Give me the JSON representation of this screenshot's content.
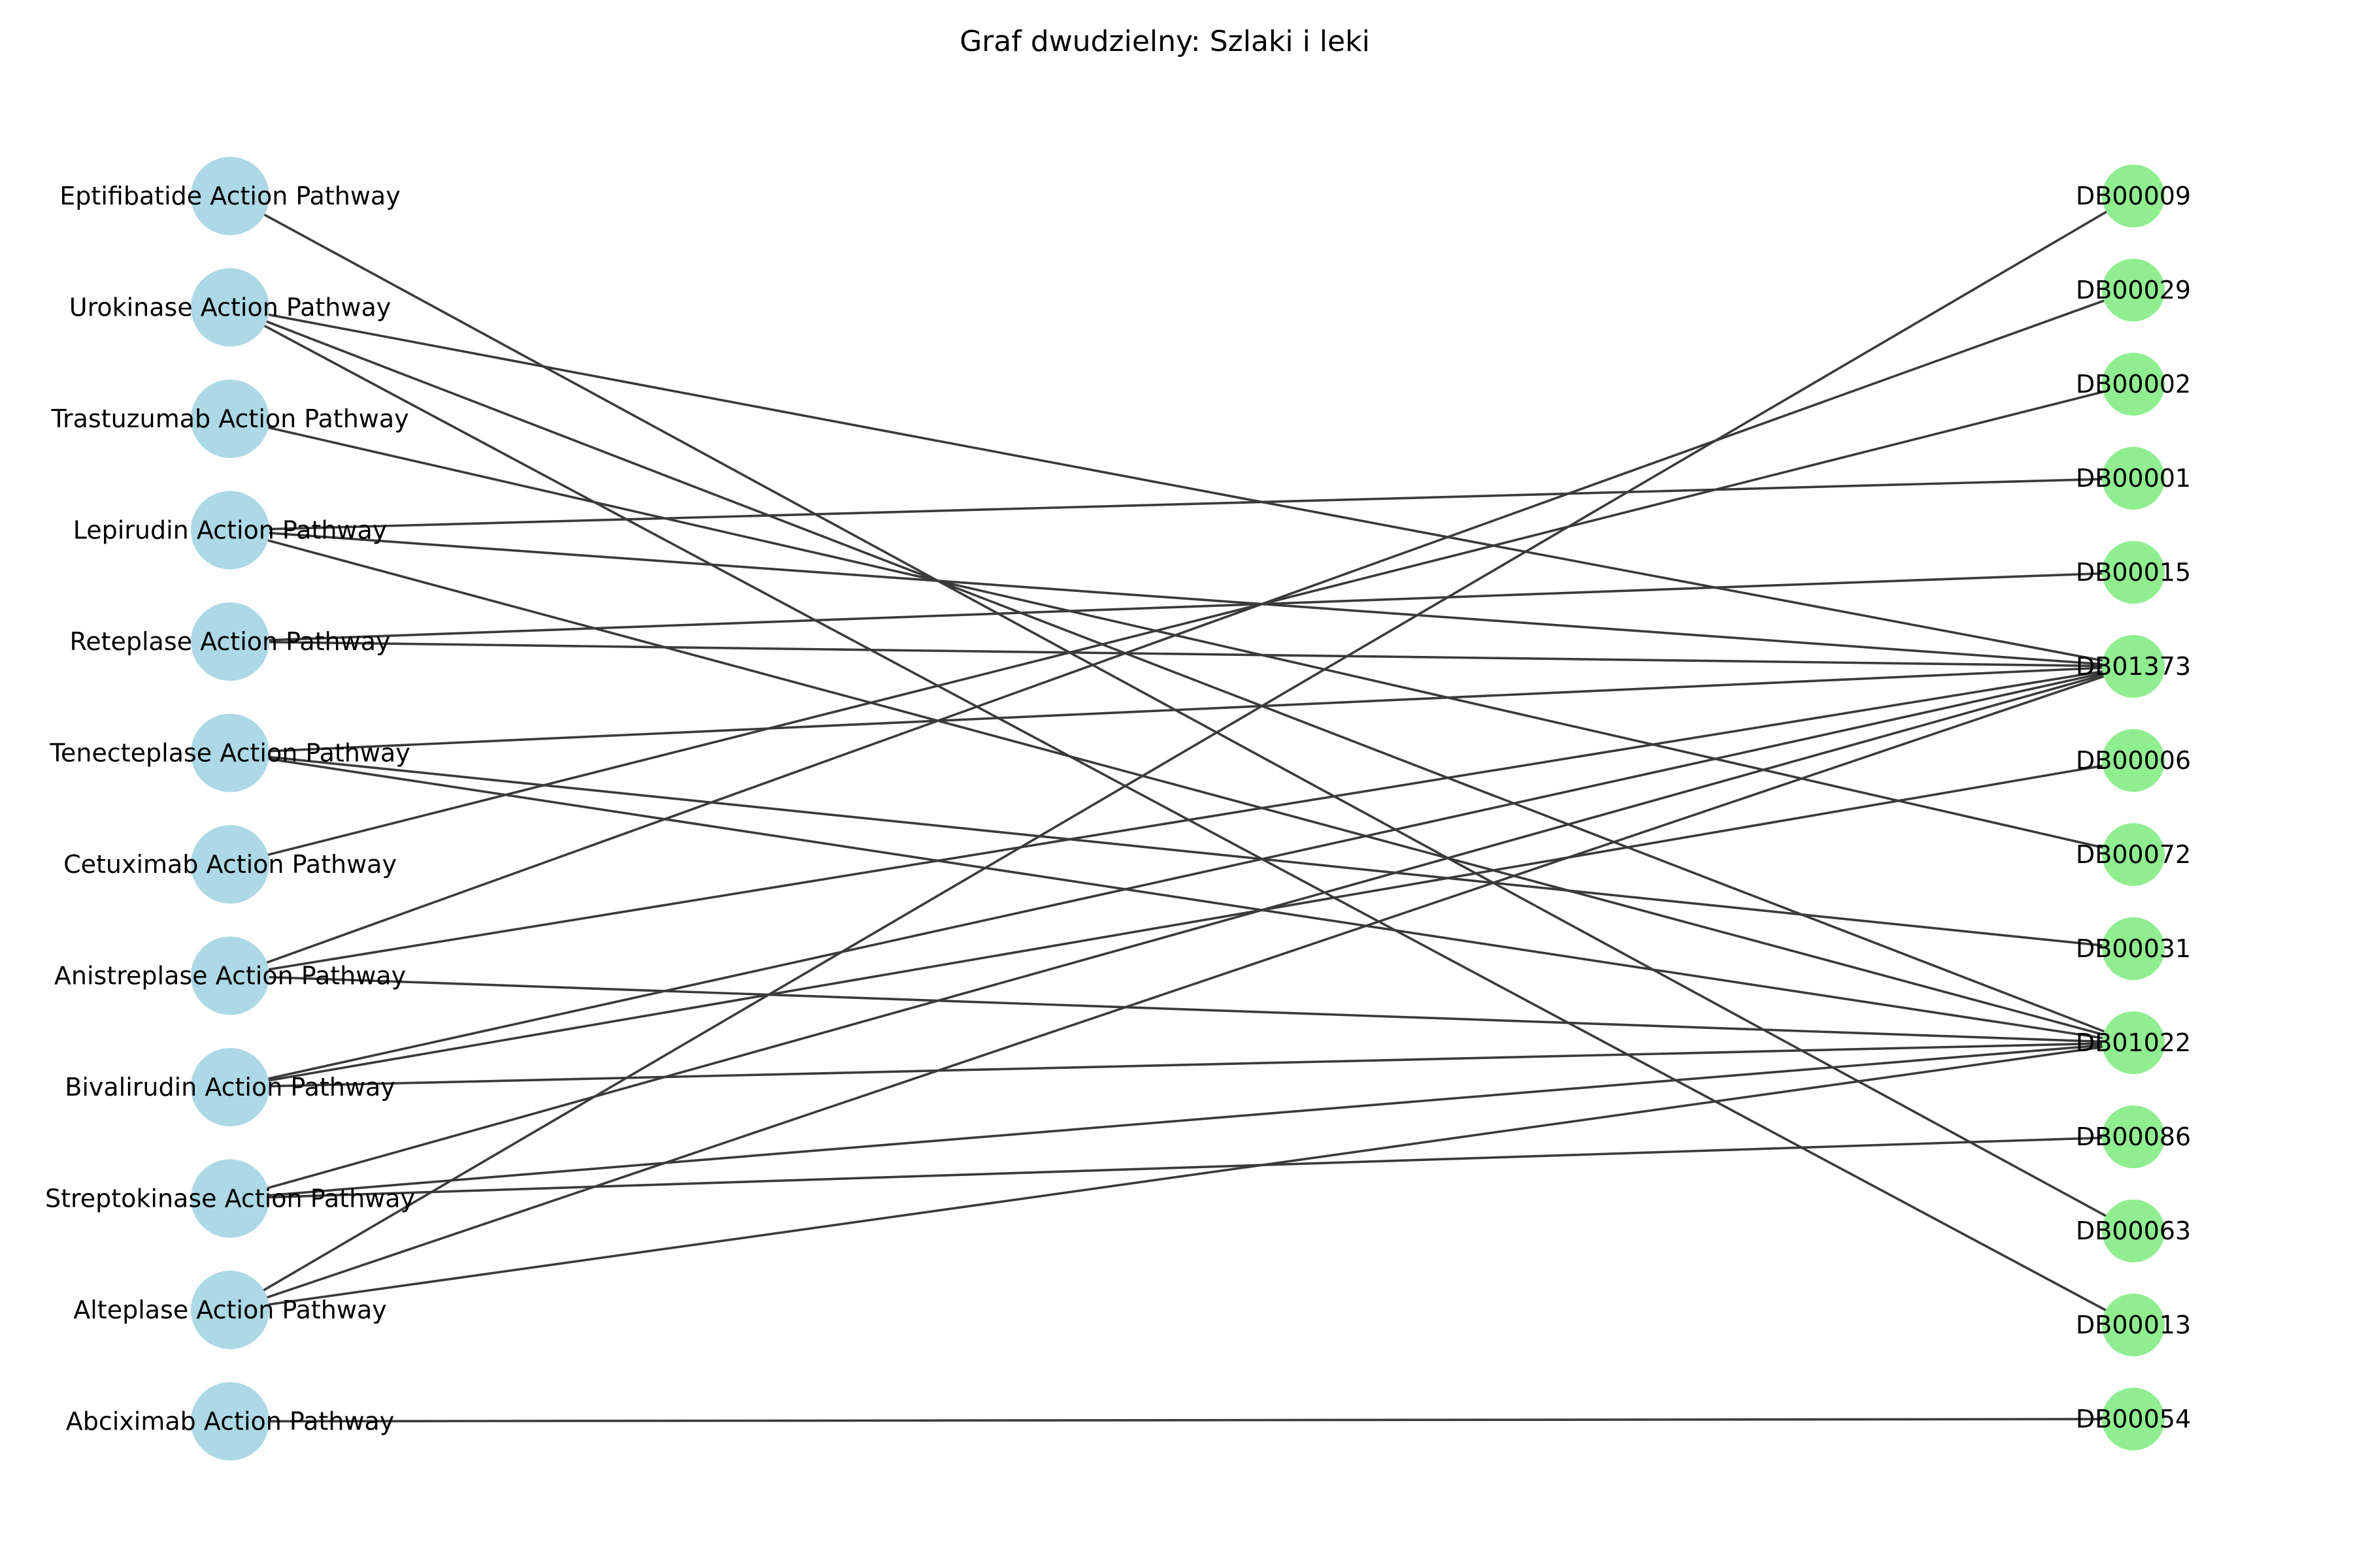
{
  "title": "Graf dwudzielny: Szlaki i leki",
  "colors": {
    "pathway_node": "#add8e6",
    "drug_node": "#90ee90",
    "edge": "#3a3a3a"
  },
  "pathways": [
    "Eptifibatide Action Pathway",
    "Urokinase Action Pathway",
    "Trastuzumab Action Pathway",
    "Lepirudin Action Pathway",
    "Reteplase Action Pathway",
    "Tenecteplase Action Pathway",
    "Cetuximab Action Pathway",
    "Anistreplase Action Pathway",
    "Bivalirudin Action Pathway",
    "Streptokinase Action Pathway",
    "Alteplase Action Pathway",
    "Abciximab Action Pathway"
  ],
  "drugs": [
    "DB00009",
    "DB00029",
    "DB00002",
    "DB00001",
    "DB00015",
    "DB01373",
    "DB00006",
    "DB00072",
    "DB00031",
    "DB01022",
    "DB00086",
    "DB00063",
    "DB00013",
    "DB00054"
  ],
  "edges": [
    [
      "Eptifibatide Action Pathway",
      "DB00063"
    ],
    [
      "Urokinase Action Pathway",
      "DB01373"
    ],
    [
      "Urokinase Action Pathway",
      "DB01022"
    ],
    [
      "Urokinase Action Pathway",
      "DB00013"
    ],
    [
      "Trastuzumab Action Pathway",
      "DB00072"
    ],
    [
      "Lepirudin Action Pathway",
      "DB00001"
    ],
    [
      "Lepirudin Action Pathway",
      "DB01373"
    ],
    [
      "Lepirudin Action Pathway",
      "DB01022"
    ],
    [
      "Reteplase Action Pathway",
      "DB00015"
    ],
    [
      "Reteplase Action Pathway",
      "DB01373"
    ],
    [
      "Tenecteplase Action Pathway",
      "DB01373"
    ],
    [
      "Tenecteplase Action Pathway",
      "DB00031"
    ],
    [
      "Tenecteplase Action Pathway",
      "DB01022"
    ],
    [
      "Cetuximab Action Pathway",
      "DB00002"
    ],
    [
      "Anistreplase Action Pathway",
      "DB00029"
    ],
    [
      "Anistreplase Action Pathway",
      "DB01373"
    ],
    [
      "Anistreplase Action Pathway",
      "DB01022"
    ],
    [
      "Bivalirudin Action Pathway",
      "DB01373"
    ],
    [
      "Bivalirudin Action Pathway",
      "DB00006"
    ],
    [
      "Bivalirudin Action Pathway",
      "DB01022"
    ],
    [
      "Streptokinase Action Pathway",
      "DB01373"
    ],
    [
      "Streptokinase Action Pathway",
      "DB01022"
    ],
    [
      "Streptokinase Action Pathway",
      "DB00086"
    ],
    [
      "Alteplase Action Pathway",
      "DB00009"
    ],
    [
      "Alteplase Action Pathway",
      "DB01373"
    ],
    [
      "Alteplase Action Pathway",
      "DB01022"
    ],
    [
      "Abciximab Action Pathway",
      "DB00054"
    ]
  ]
}
